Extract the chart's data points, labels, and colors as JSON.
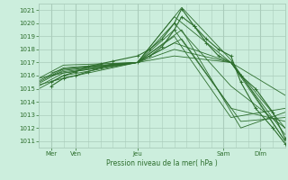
{
  "title": "Pression niveau de la mer( hPa )",
  "ylabel_ticks": [
    1011,
    1012,
    1013,
    1014,
    1015,
    1016,
    1017,
    1018,
    1019,
    1020,
    1021
  ],
  "ylim": [
    1010.5,
    1021.5
  ],
  "xlim": [
    0,
    100
  ],
  "bg_color": "#cceedd",
  "grid_color": "#aaccbb",
  "line_color": "#2d6e2d",
  "x_tick_positions": [
    5,
    15,
    40,
    75,
    90
  ],
  "x_labels": [
    "Mer",
    "Ven",
    "Jeu",
    "Sam",
    "Dim"
  ],
  "series": [
    {
      "x": [
        0,
        10,
        40,
        58,
        78,
        100
      ],
      "y": [
        1015.5,
        1016.5,
        1017.0,
        1021.2,
        1017.2,
        1011.0
      ]
    },
    {
      "x": [
        0,
        10,
        40,
        55,
        78,
        100
      ],
      "y": [
        1015.8,
        1016.8,
        1017.0,
        1020.5,
        1017.0,
        1011.5
      ]
    },
    {
      "x": [
        0,
        10,
        40,
        55,
        78,
        100
      ],
      "y": [
        1015.6,
        1016.6,
        1017.0,
        1020.0,
        1015.2,
        1012.0
      ]
    },
    {
      "x": [
        0,
        10,
        40,
        55,
        78,
        100
      ],
      "y": [
        1015.4,
        1016.4,
        1017.0,
        1019.5,
        1013.5,
        1012.5
      ]
    },
    {
      "x": [
        0,
        10,
        40,
        55,
        78,
        100
      ],
      "y": [
        1015.2,
        1016.2,
        1017.0,
        1019.0,
        1012.8,
        1013.5
      ]
    },
    {
      "x": [
        0,
        10,
        40,
        55,
        78,
        100
      ],
      "y": [
        1015.0,
        1016.0,
        1017.0,
        1018.5,
        1017.0,
        1014.5
      ]
    },
    {
      "x": [
        0,
        10,
        40,
        55,
        78,
        100
      ],
      "y": [
        1015.8,
        1016.2,
        1017.0,
        1018.0,
        1017.0,
        1011.0
      ]
    },
    {
      "x": [
        0,
        10,
        40,
        55,
        78,
        100
      ],
      "y": [
        1015.3,
        1015.8,
        1017.0,
        1017.5,
        1017.0,
        1012.0
      ]
    },
    {
      "x": [
        5,
        10,
        40,
        58,
        82,
        100
      ],
      "y": [
        1016.2,
        1016.5,
        1017.0,
        1019.5,
        1012.0,
        1013.2
      ]
    },
    {
      "x": [
        5,
        10,
        40,
        58,
        82,
        100
      ],
      "y": [
        1016.0,
        1016.3,
        1017.0,
        1018.8,
        1012.5,
        1012.8
      ]
    }
  ],
  "marker_series": [
    {
      "x": [
        5,
        10,
        15,
        20,
        25,
        30,
        40,
        45,
        50,
        55,
        58,
        63,
        68,
        73,
        78,
        82,
        88,
        95,
        100
      ],
      "y": [
        1015.5,
        1016.0,
        1016.3,
        1016.7,
        1016.9,
        1017.1,
        1017.5,
        1018.0,
        1018.8,
        1020.0,
        1021.1,
        1019.8,
        1018.5,
        1017.5,
        1017.0,
        1016.0,
        1015.0,
        1013.2,
        1011.2
      ]
    },
    {
      "x": [
        5,
        10,
        15,
        20,
        25,
        30,
        40,
        45,
        50,
        55,
        58,
        63,
        68,
        73,
        78,
        82,
        88,
        95,
        100
      ],
      "y": [
        1015.2,
        1015.8,
        1016.0,
        1016.3,
        1016.6,
        1016.9,
        1017.0,
        1017.5,
        1018.2,
        1019.5,
        1020.5,
        1019.8,
        1018.8,
        1018.0,
        1017.5,
        1015.5,
        1013.5,
        1012.0,
        1010.8
      ]
    }
  ],
  "vlines": [
    5,
    15,
    40,
    75,
    90
  ]
}
